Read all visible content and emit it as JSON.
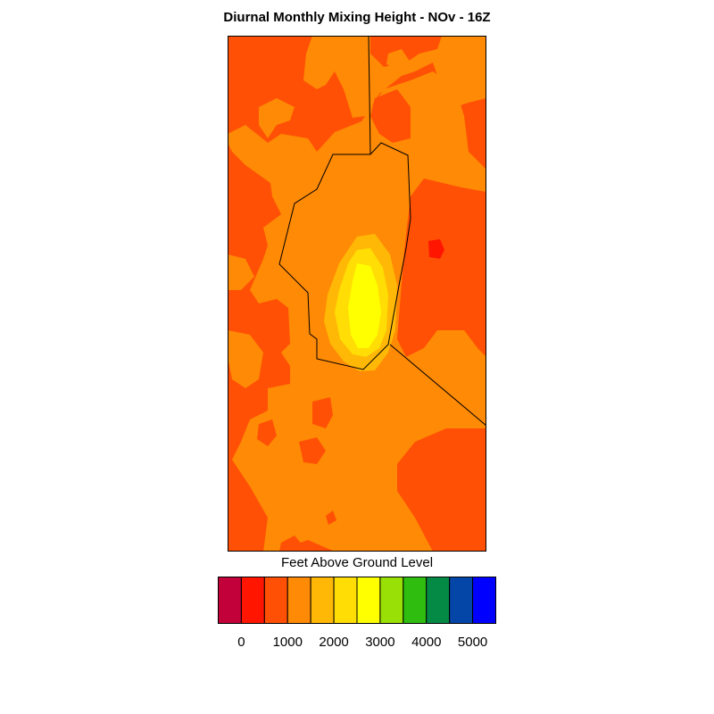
{
  "title": "Diurnal Monthly Mixing Height - NOv - 16Z",
  "colorbar": {
    "label": "Feet Above Ground Level",
    "colors": [
      "#c2003a",
      "#ff1500",
      "#ff5005",
      "#ff8a05",
      "#ffb805",
      "#ffdd05",
      "#ffff00",
      "#98e005",
      "#2fbe10",
      "#058a45",
      "#0445a8",
      "#0000ff"
    ],
    "tick_labels": [
      "0",
      "1000",
      "2000",
      "3000",
      "4000",
      "5000"
    ]
  },
  "map": {
    "background_color": "#ff5005",
    "layer_colors": {
      "orange": "#ff8a05",
      "amber": "#ffb805",
      "gold": "#ffdd05",
      "yellow": "#ffff00",
      "red": "#ff1500"
    }
  }
}
